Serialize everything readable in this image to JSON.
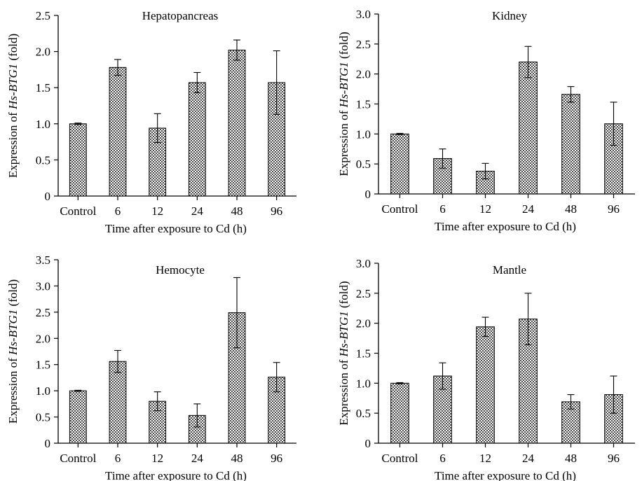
{
  "figure": {
    "xlabel": "Time after exposure to Cd (h)",
    "ylabel_prefix": "Expression of ",
    "ylabel_gene": "Hs-BTG1",
    "ylabel_suffix": " (fold)"
  },
  "colors": {
    "bar_fill_pattern": "checkerboard",
    "bar_light": "#ffffff",
    "bar_dark": "#444444",
    "axis": "#000000"
  },
  "chart_data": [
    {
      "type": "bar",
      "title": "Hepatopancreas",
      "xlabel": "Time after exposure to Cd (h)",
      "ylabel": "Expression of Hs-BTG1 (fold)",
      "categories": [
        "Control",
        "6",
        "12",
        "24",
        "48",
        "96"
      ],
      "values": [
        1.0,
        1.78,
        0.94,
        1.57,
        2.02,
        1.57
      ],
      "errors": [
        0.01,
        0.11,
        0.2,
        0.14,
        0.14,
        0.44
      ],
      "ylim": [
        0,
        2.5
      ],
      "yticks": [
        "0",
        "0.5",
        "1.0",
        "1.5",
        "2.0",
        "2.5"
      ],
      "ytick_values": [
        0,
        0.5,
        1.0,
        1.5,
        2.0,
        2.5
      ],
      "grid": false,
      "legend": false
    },
    {
      "type": "bar",
      "title": "Kidney",
      "xlabel": "Time after exposure to Cd (h)",
      "ylabel": "Expression of Hs-BTG1 (fold)",
      "categories": [
        "Control",
        "6",
        "12",
        "24",
        "48",
        "96"
      ],
      "values": [
        1.0,
        0.59,
        0.38,
        2.2,
        1.66,
        1.17
      ],
      "errors": [
        0.01,
        0.16,
        0.13,
        0.26,
        0.13,
        0.36
      ],
      "ylim": [
        0,
        3.0
      ],
      "yticks": [
        "0",
        "0.5",
        "1.0",
        "1.5",
        "2.0",
        "2.5",
        "3.0"
      ],
      "ytick_values": [
        0,
        0.5,
        1.0,
        1.5,
        2.0,
        2.5,
        3.0
      ],
      "grid": false,
      "legend": false
    },
    {
      "type": "bar",
      "title": "Hemocyte",
      "xlabel": "Time after exposure to Cd (h)",
      "ylabel": "Expression of Hs-BTG1 (fold)",
      "categories": [
        "Control",
        "6",
        "12",
        "24",
        "48",
        "96"
      ],
      "values": [
        1.0,
        1.56,
        0.8,
        0.53,
        2.49,
        1.26
      ],
      "errors": [
        0.01,
        0.21,
        0.18,
        0.22,
        0.67,
        0.28
      ],
      "ylim": [
        0,
        3.5
      ],
      "yticks": [
        "0",
        "0.5",
        "1.0",
        "1.5",
        "2.0",
        "2.5",
        "3.0",
        "3.5"
      ],
      "ytick_values": [
        0,
        0.5,
        1.0,
        1.5,
        2.0,
        2.5,
        3.0,
        3.5
      ],
      "grid": false,
      "legend": false
    },
    {
      "type": "bar",
      "title": "Mantle",
      "xlabel": "Time after exposure to Cd (h)",
      "ylabel": "Expression of Hs-BTG1 (fold)",
      "categories": [
        "Control",
        "6",
        "12",
        "24",
        "48",
        "96"
      ],
      "values": [
        1.0,
        1.12,
        1.94,
        2.07,
        0.69,
        0.81
      ],
      "errors": [
        0.01,
        0.22,
        0.16,
        0.43,
        0.12,
        0.31
      ],
      "ylim": [
        0,
        3.0
      ],
      "yticks": [
        "0",
        "0.5",
        "1.0",
        "1.5",
        "2.0",
        "2.5",
        "3.0"
      ],
      "ytick_values": [
        0,
        0.5,
        1.0,
        1.5,
        2.0,
        2.5,
        3.0
      ],
      "grid": false,
      "legend": false
    }
  ]
}
